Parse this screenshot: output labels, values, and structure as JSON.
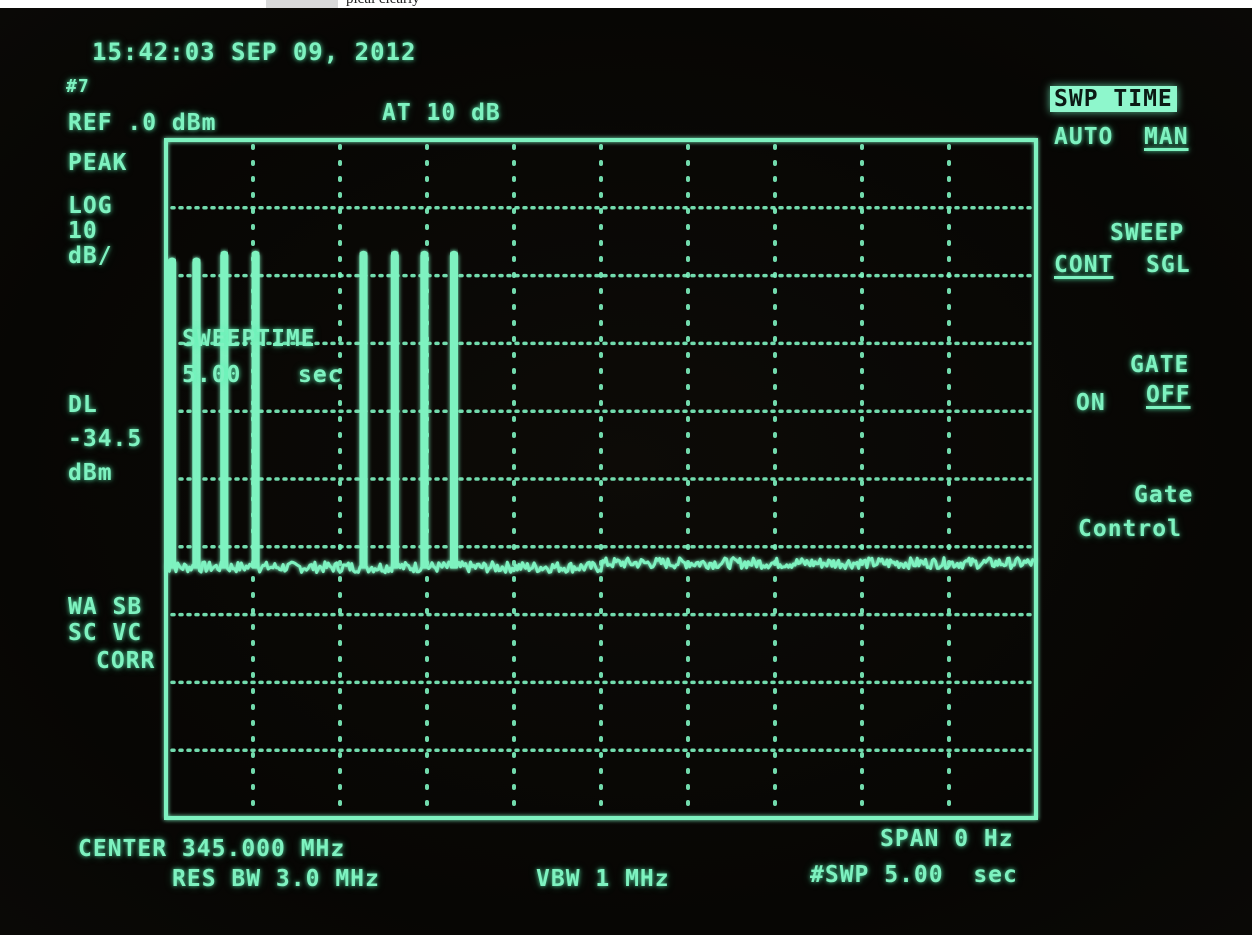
{
  "top_caption": "pical clearly",
  "status": {
    "timestamp": "15:42:03 SEP 09, 2012",
    "marker_glyph": "#7",
    "ref_level": "REF .0 dBm",
    "attenuation": "AT 10 dB",
    "detector": "PEAK",
    "scale_type": "LOG",
    "scale_value": "10",
    "scale_unit": "dB/",
    "display_line_label": "DL",
    "display_line_value": "-34.5",
    "display_line_unit": "dBm",
    "sweep_time_label": "SWEEPTIME",
    "sweep_time_value": "5.00",
    "sweep_time_unit": "sec",
    "corrections": [
      "WA SB",
      "SC VC",
      "CORR"
    ]
  },
  "bottom": {
    "center": "CENTER 345.000 MHz",
    "res_bw": "RES BW 3.0 MHz",
    "vbw": "VBW 1 MHz",
    "span": "SPAN 0 Hz",
    "sweep": "#SWP 5.00  sec"
  },
  "softkeys": {
    "swp_time": {
      "title": "SWP TIME",
      "opt1": "AUTO",
      "opt2": "MAN",
      "active": "MAN"
    },
    "sweep": {
      "title": "SWEEP",
      "opt1": "CONT",
      "opt2": "SGL",
      "active": "CONT"
    },
    "gate": {
      "title": "GATE",
      "opt1": "ON",
      "opt2": "OFF",
      "active": "OFF"
    },
    "gate_control": {
      "line1": "Gate",
      "line2": "Control"
    }
  },
  "colors": {
    "phosphor": "#7ef2c0",
    "background": "#070604",
    "highlight": "#8ef7cc"
  },
  "chart_data": {
    "type": "line",
    "x_unit": "sec",
    "y_unit": "dBm",
    "xlim": [
      0,
      5.0
    ],
    "ylim": [
      -100,
      0
    ],
    "grid": true,
    "display_line_dbm": -34.5,
    "noise_floor_dbm": -63,
    "pulses": [
      {
        "t": 0.02,
        "peak_dbm": -18
      },
      {
        "t": 0.16,
        "peak_dbm": -18
      },
      {
        "t": 0.32,
        "peak_dbm": -17
      },
      {
        "t": 0.5,
        "peak_dbm": -17
      },
      {
        "t": 1.12,
        "peak_dbm": -17
      },
      {
        "t": 1.3,
        "peak_dbm": -17
      },
      {
        "t": 1.47,
        "peak_dbm": -17
      },
      {
        "t": 1.64,
        "peak_dbm": -17
      }
    ]
  }
}
